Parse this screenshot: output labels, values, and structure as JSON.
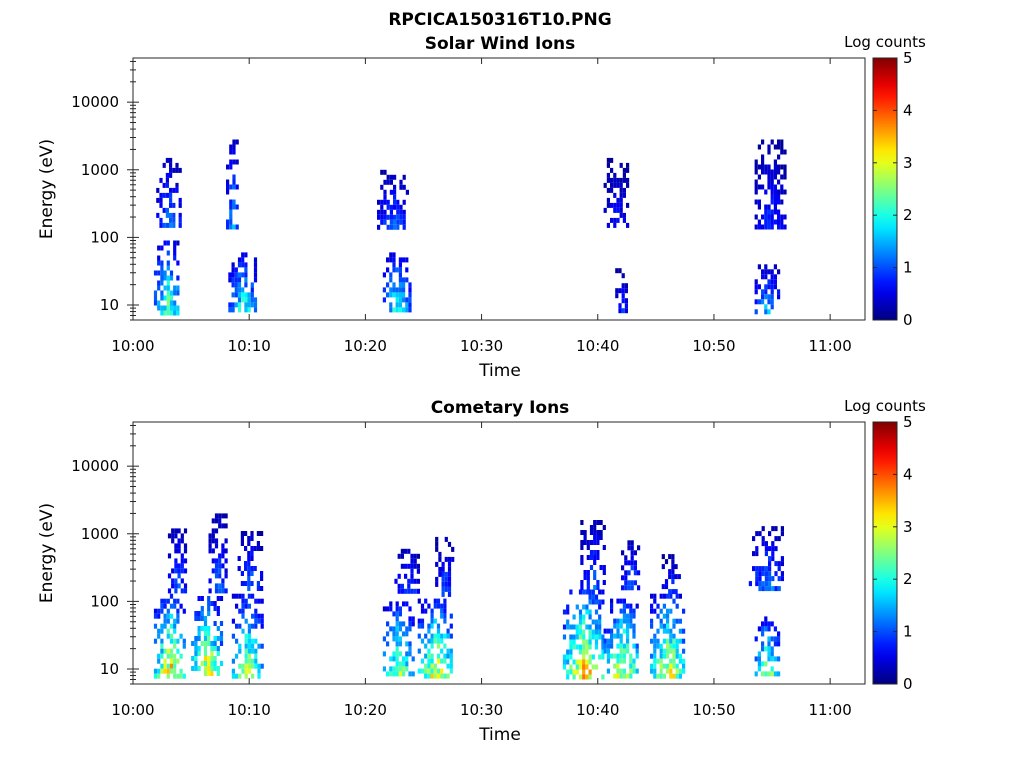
{
  "figure_title": "RPCICA150316T10.PNG",
  "chart_data": [
    {
      "type": "heatmap",
      "title": "Solar Wind Ions",
      "xlabel": "Time",
      "ylabel": "Energy (eV)",
      "x_ticks": [
        "10:00",
        "10:10",
        "10:20",
        "10:30",
        "10:40",
        "10:50",
        "11:00"
      ],
      "xlim": [
        0,
        63
      ],
      "y_ticks": [
        "10",
        "100",
        "1000",
        "10000"
      ],
      "y_scale": "log",
      "ylim": [
        6,
        45000
      ],
      "colorbar": {
        "label": "Log counts",
        "range": [
          0,
          5
        ],
        "ticks": [
          "0",
          "1",
          "2",
          "3",
          "4",
          "5"
        ],
        "colormap": "jet"
      },
      "clusters": [
        {
          "t": [
            1.8,
            4.0
          ],
          "e": [
            8,
            90
          ],
          "peak": 2.6
        },
        {
          "t": [
            2.0,
            4.0
          ],
          "e": [
            150,
            1500
          ],
          "peak": 1.4
        },
        {
          "t": [
            8.2,
            10.5
          ],
          "e": [
            8,
            60
          ],
          "peak": 2.3
        },
        {
          "t": [
            8.0,
            9.0
          ],
          "e": [
            150,
            2800
          ],
          "peak": 1.6
        },
        {
          "t": [
            21.5,
            23.8
          ],
          "e": [
            8,
            60
          ],
          "peak": 2.3
        },
        {
          "t": [
            21.0,
            23.5
          ],
          "e": [
            150,
            1000
          ],
          "peak": 1.2
        },
        {
          "t": [
            41.5,
            42.5
          ],
          "e": [
            8,
            35
          ],
          "peak": 1.0
        },
        {
          "t": [
            40.5,
            42.5
          ],
          "e": [
            150,
            1500
          ],
          "peak": 0.8
        },
        {
          "t": [
            53.5,
            55.5
          ],
          "e": [
            8,
            40
          ],
          "peak": 1.8
        },
        {
          "t": [
            53.5,
            56.0
          ],
          "e": [
            150,
            2800
          ],
          "peak": 0.9
        }
      ]
    },
    {
      "type": "heatmap",
      "title": "Cometary Ions",
      "xlabel": "Time",
      "ylabel": "Energy (eV)",
      "x_ticks": [
        "10:00",
        "10:10",
        "10:20",
        "10:30",
        "10:40",
        "10:50",
        "11:00"
      ],
      "xlim": [
        0,
        63
      ],
      "y_ticks": [
        "10",
        "100",
        "1000",
        "10000"
      ],
      "y_scale": "log",
      "ylim": [
        6,
        45000
      ],
      "colorbar": {
        "label": "Log counts",
        "range": [
          0,
          5
        ],
        "ticks": [
          "0",
          "1",
          "2",
          "3",
          "4",
          "5"
        ],
        "colormap": "jet"
      },
      "clusters": [
        {
          "t": [
            1.8,
            4.5
          ],
          "e": [
            8,
            130
          ],
          "peak": 3.7
        },
        {
          "t": [
            3.0,
            4.5
          ],
          "e": [
            150,
            1200
          ],
          "peak": 1.3
        },
        {
          "t": [
            5.0,
            7.5
          ],
          "e": [
            8,
            120
          ],
          "peak": 3.6
        },
        {
          "t": [
            6.5,
            8.0
          ],
          "e": [
            150,
            2000
          ],
          "peak": 1.2
        },
        {
          "t": [
            8.5,
            11.0
          ],
          "e": [
            8,
            130
          ],
          "peak": 3.0
        },
        {
          "t": [
            9.0,
            11.0
          ],
          "e": [
            150,
            1100
          ],
          "peak": 1.3
        },
        {
          "t": [
            21.5,
            24.0
          ],
          "e": [
            8,
            100
          ],
          "peak": 3.0
        },
        {
          "t": [
            22.5,
            24.5
          ],
          "e": [
            130,
            600
          ],
          "peak": 1.3
        },
        {
          "t": [
            24.5,
            27.5
          ],
          "e": [
            8,
            110
          ],
          "peak": 3.4
        },
        {
          "t": [
            26.0,
            27.5
          ],
          "e": [
            130,
            900
          ],
          "peak": 1.2
        },
        {
          "t": [
            37.0,
            40.5
          ],
          "e": [
            8,
            150
          ],
          "peak": 3.8
        },
        {
          "t": [
            38.5,
            40.5
          ],
          "e": [
            150,
            1600
          ],
          "peak": 1.3
        },
        {
          "t": [
            40.5,
            43.5
          ],
          "e": [
            8,
            110
          ],
          "peak": 3.3
        },
        {
          "t": [
            42.0,
            43.5
          ],
          "e": [
            150,
            800
          ],
          "peak": 1.4
        },
        {
          "t": [
            44.5,
            47.5
          ],
          "e": [
            8,
            130
          ],
          "peak": 3.4
        },
        {
          "t": [
            45.5,
            47.0
          ],
          "e": [
            150,
            500
          ],
          "peak": 1.0
        },
        {
          "t": [
            53.5,
            55.5
          ],
          "e": [
            8,
            60
          ],
          "peak": 3.0
        },
        {
          "t": [
            53.0,
            56.0
          ],
          "e": [
            150,
            1300
          ],
          "peak": 1.4
        }
      ]
    }
  ]
}
